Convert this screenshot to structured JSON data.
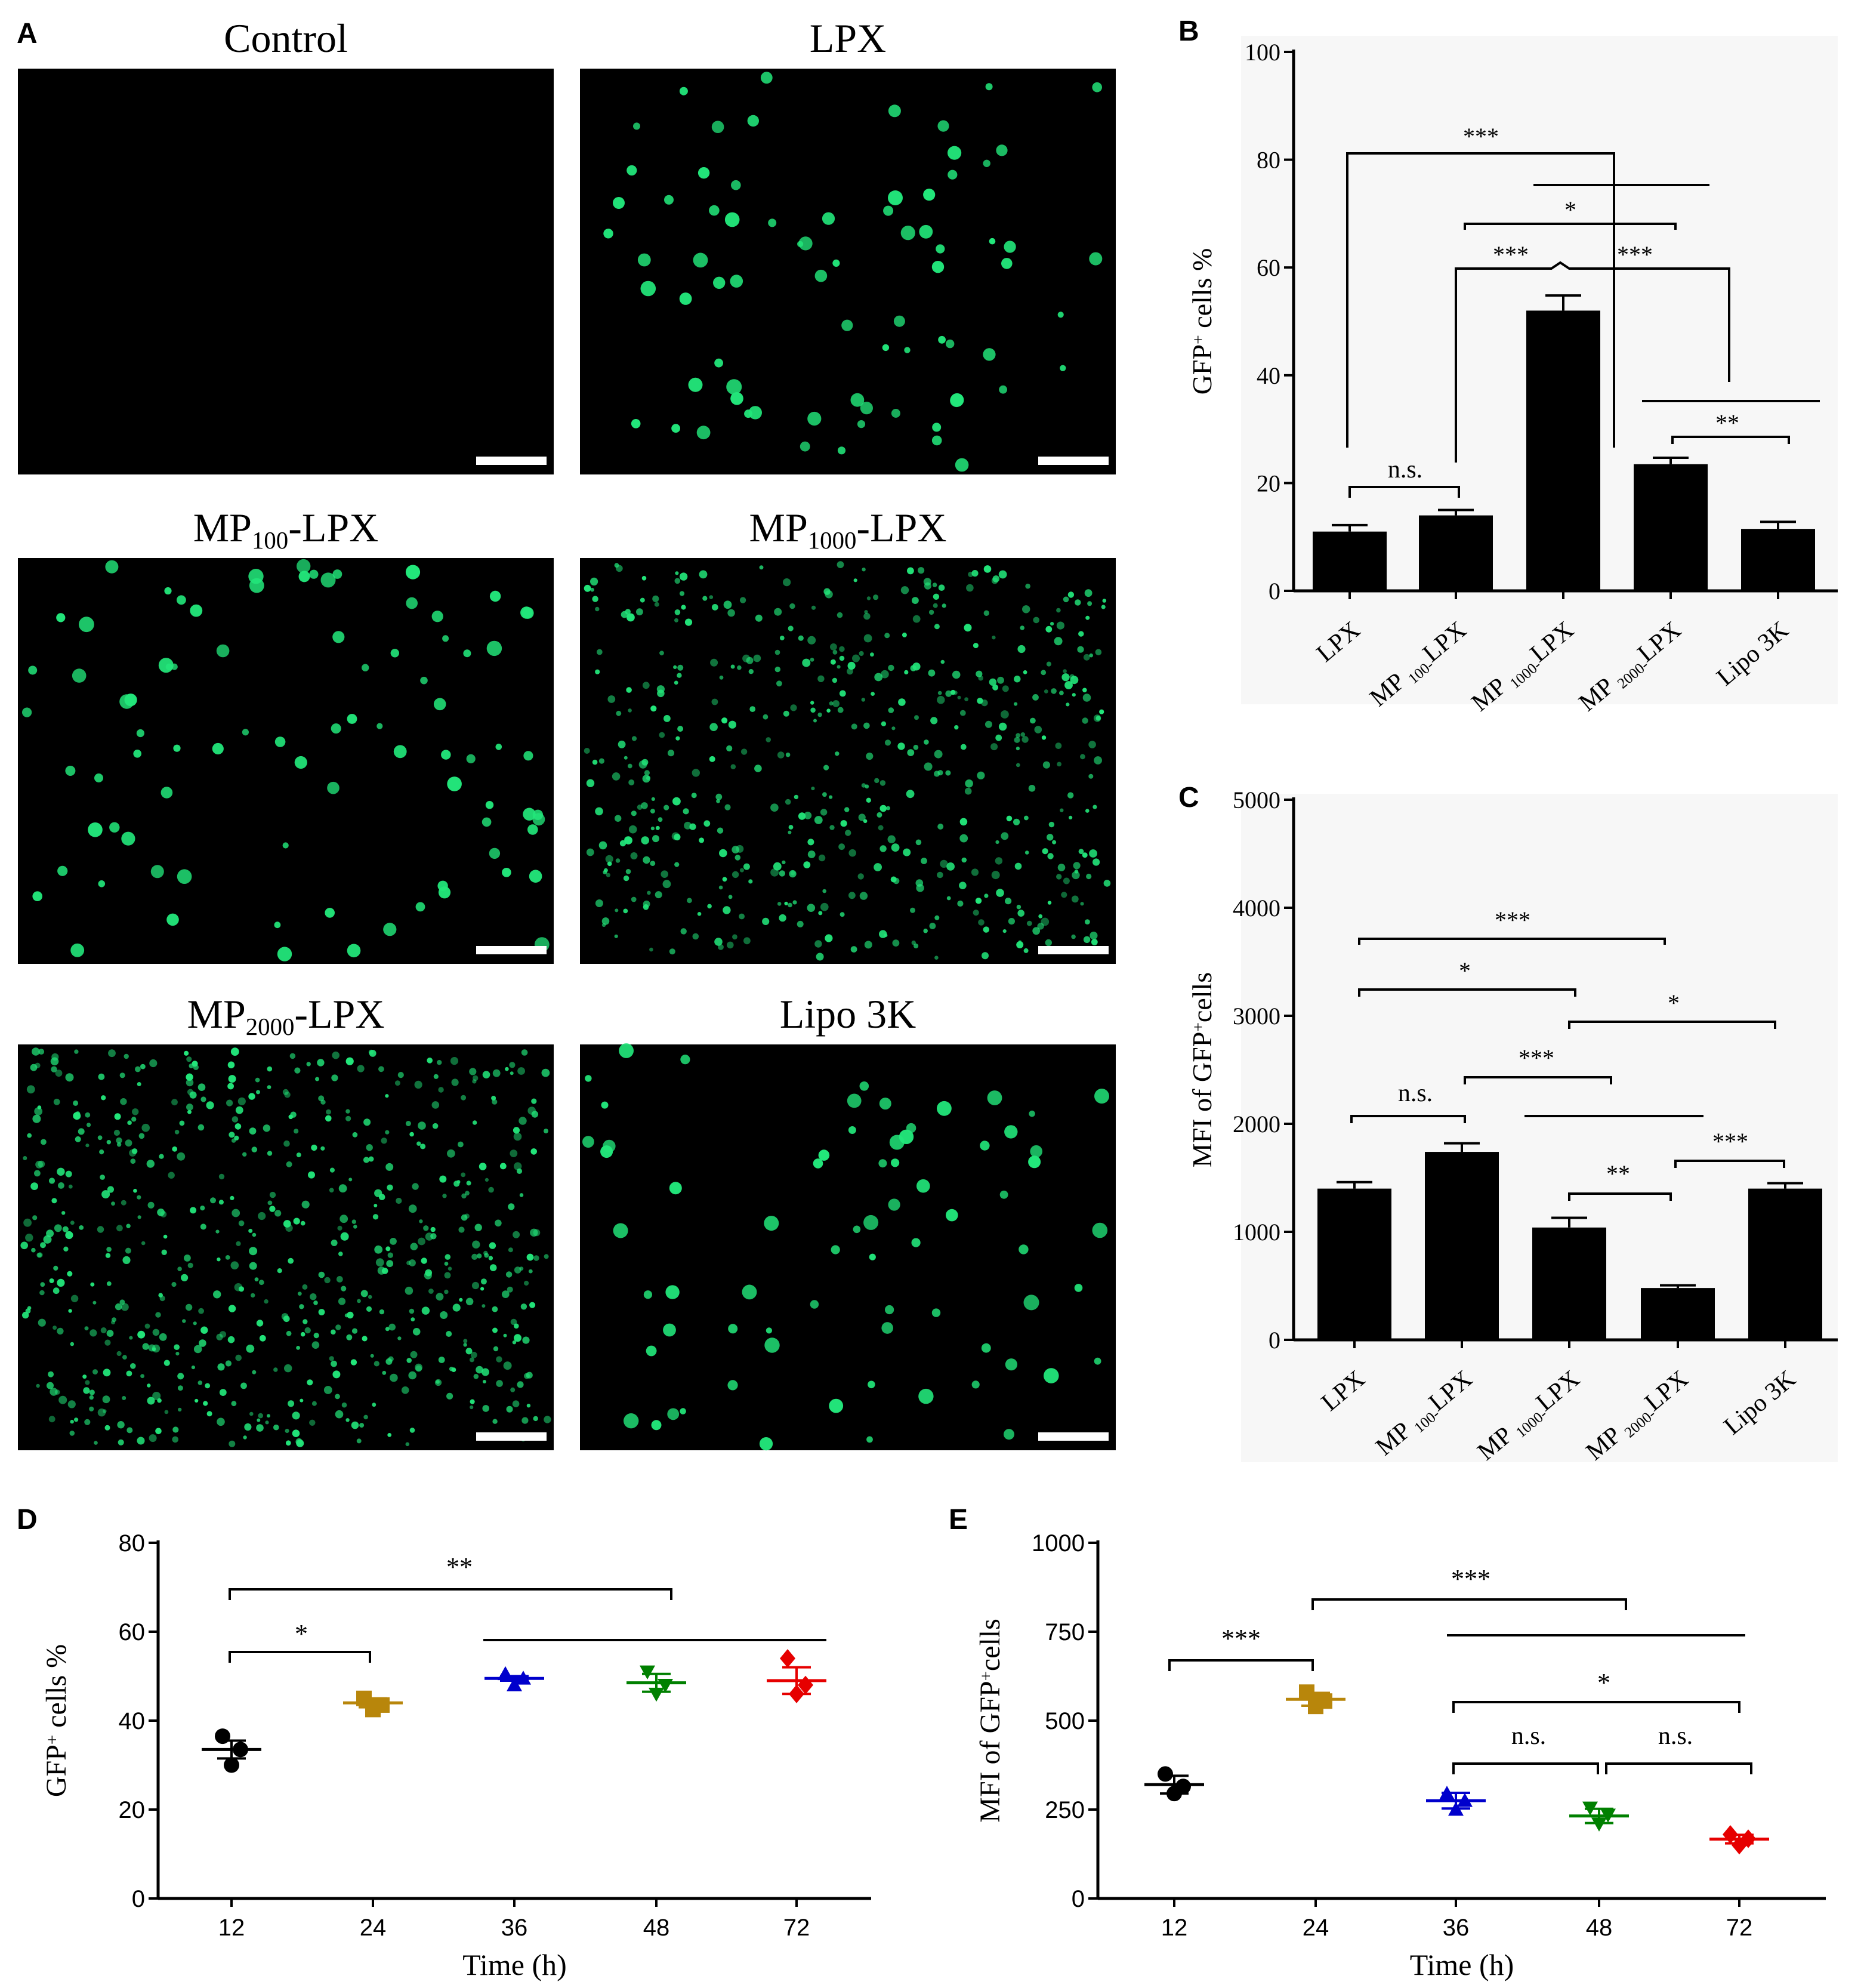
{
  "panel_a": {
    "label": "A",
    "images": [
      {
        "title": "Control",
        "cells": 0
      },
      {
        "title": "LPX",
        "cells": 75
      },
      {
        "title_main": "MP",
        "title_sub": "100",
        "title_tail": "-LPX",
        "cells": 85
      },
      {
        "title_main": "MP",
        "title_sub": "1000",
        "title_tail": "-LPX",
        "cells": 520
      },
      {
        "title_main": "MP",
        "title_sub": "2000",
        "title_tail": "-LPX",
        "cells": 620
      },
      {
        "title": "Lipo 3K",
        "cells": 70
      }
    ],
    "colors": {
      "background": "#000000",
      "cell": "#22e67a",
      "scalebar": "#ffffff"
    }
  },
  "chart_data": [
    {
      "panel": "B",
      "type": "bar",
      "categories": [
        {
          "main": "LPX",
          "sub": "",
          "tail": ""
        },
        {
          "main": "MP ",
          "sub": "100-",
          "tail": "LPX"
        },
        {
          "main": "MP ",
          "sub": "1000-",
          "tail": "LPX"
        },
        {
          "main": "MP ",
          "sub": "2000-",
          "tail": "LPX"
        },
        {
          "main": "Lipo 3K",
          "sub": "",
          "tail": ""
        }
      ],
      "values": [
        11,
        14,
        52,
        23.5,
        11.5
      ],
      "errors": [
        1.2,
        1.0,
        2.8,
        1.2,
        1.3
      ],
      "ylabel_main": "GFP",
      "ylabel_sup": "+",
      "ylabel_tail": " cells %",
      "ylim": [
        0,
        100
      ],
      "yticks": [
        "0",
        "20",
        "40",
        "60",
        "80",
        "100"
      ],
      "annotations": [
        "***",
        "*",
        "***",
        "***",
        "**",
        "n.s."
      ],
      "color": "#000000"
    },
    {
      "panel": "C",
      "type": "bar",
      "categories": [
        {
          "main": "LPX",
          "sub": "",
          "tail": ""
        },
        {
          "main": "MP ",
          "sub": "100-",
          "tail": "LPX"
        },
        {
          "main": "MP ",
          "sub": "1000-",
          "tail": "LPX"
        },
        {
          "main": "MP ",
          "sub": "2000-",
          "tail": "LPX"
        },
        {
          "main": "Lipo 3K",
          "sub": "",
          "tail": ""
        }
      ],
      "values": [
        1400,
        1740,
        1040,
        480,
        1400
      ],
      "errors": [
        60,
        80,
        90,
        25,
        50
      ],
      "ylabel_main": "MFI of GFP",
      "ylabel_sup": "+",
      "ylabel_tail": "cells",
      "ylim": [
        0,
        5000
      ],
      "yticks": [
        "0",
        "1000",
        "2000",
        "3000",
        "4000",
        "5000"
      ],
      "annotations": [
        "***",
        "*",
        "*",
        "***",
        "n.s.",
        "**",
        "***"
      ],
      "color": "#000000"
    },
    {
      "panel": "D",
      "type": "scatter",
      "x": [
        "12",
        "24",
        "36",
        "48",
        "72"
      ],
      "means": [
        33.5,
        44,
        49.5,
        48.5,
        49
      ],
      "sem": [
        2,
        1,
        0.5,
        2,
        3
      ],
      "points": [
        [
          36.5,
          33.5,
          30
        ],
        [
          45,
          43.5,
          42.5
        ],
        [
          50.5,
          49.5,
          48
        ],
        [
          51,
          48,
          46
        ],
        [
          54,
          48,
          46
        ]
      ],
      "colors": [
        "#000000",
        "#b8860b",
        "#0000cc",
        "#008000",
        "#e60000"
      ],
      "markers": [
        "circle",
        "square",
        "triangle-up",
        "triangle-down",
        "diamond"
      ],
      "xlabel": "Time (h)",
      "ylabel_main": "GFP",
      "ylabel_sup": "+",
      "ylabel_tail": " cells %",
      "ylim": [
        0,
        80
      ],
      "yticks": [
        "0",
        "20",
        "40",
        "60",
        "80"
      ],
      "annotations": [
        "**",
        "*"
      ]
    },
    {
      "panel": "E",
      "type": "scatter",
      "x": [
        "12",
        "24",
        "36",
        "48",
        "72"
      ],
      "means": [
        320,
        560,
        275,
        232,
        167
      ],
      "sem": [
        25,
        18,
        22,
        20,
        12
      ],
      "points": [
        [
          350,
          315,
          295
        ],
        [
          580,
          555,
          540
        ],
        [
          295,
          275,
          250
        ],
        [
          255,
          235,
          210
        ],
        [
          180,
          168,
          150
        ]
      ],
      "colors": [
        "#000000",
        "#b8860b",
        "#0000cc",
        "#008000",
        "#e60000"
      ],
      "markers": [
        "circle",
        "square",
        "triangle-up",
        "triangle-down",
        "diamond"
      ],
      "xlabel": "Time (h)",
      "ylabel_main": "MFI of GFP",
      "ylabel_sup": "+",
      "ylabel_tail": "cells",
      "ylim": [
        0,
        1000
      ],
      "yticks": [
        "0",
        "250",
        "500",
        "750",
        "1000"
      ],
      "annotations": [
        "***",
        "***",
        "*",
        "n.s.",
        "n.s."
      ]
    }
  ]
}
